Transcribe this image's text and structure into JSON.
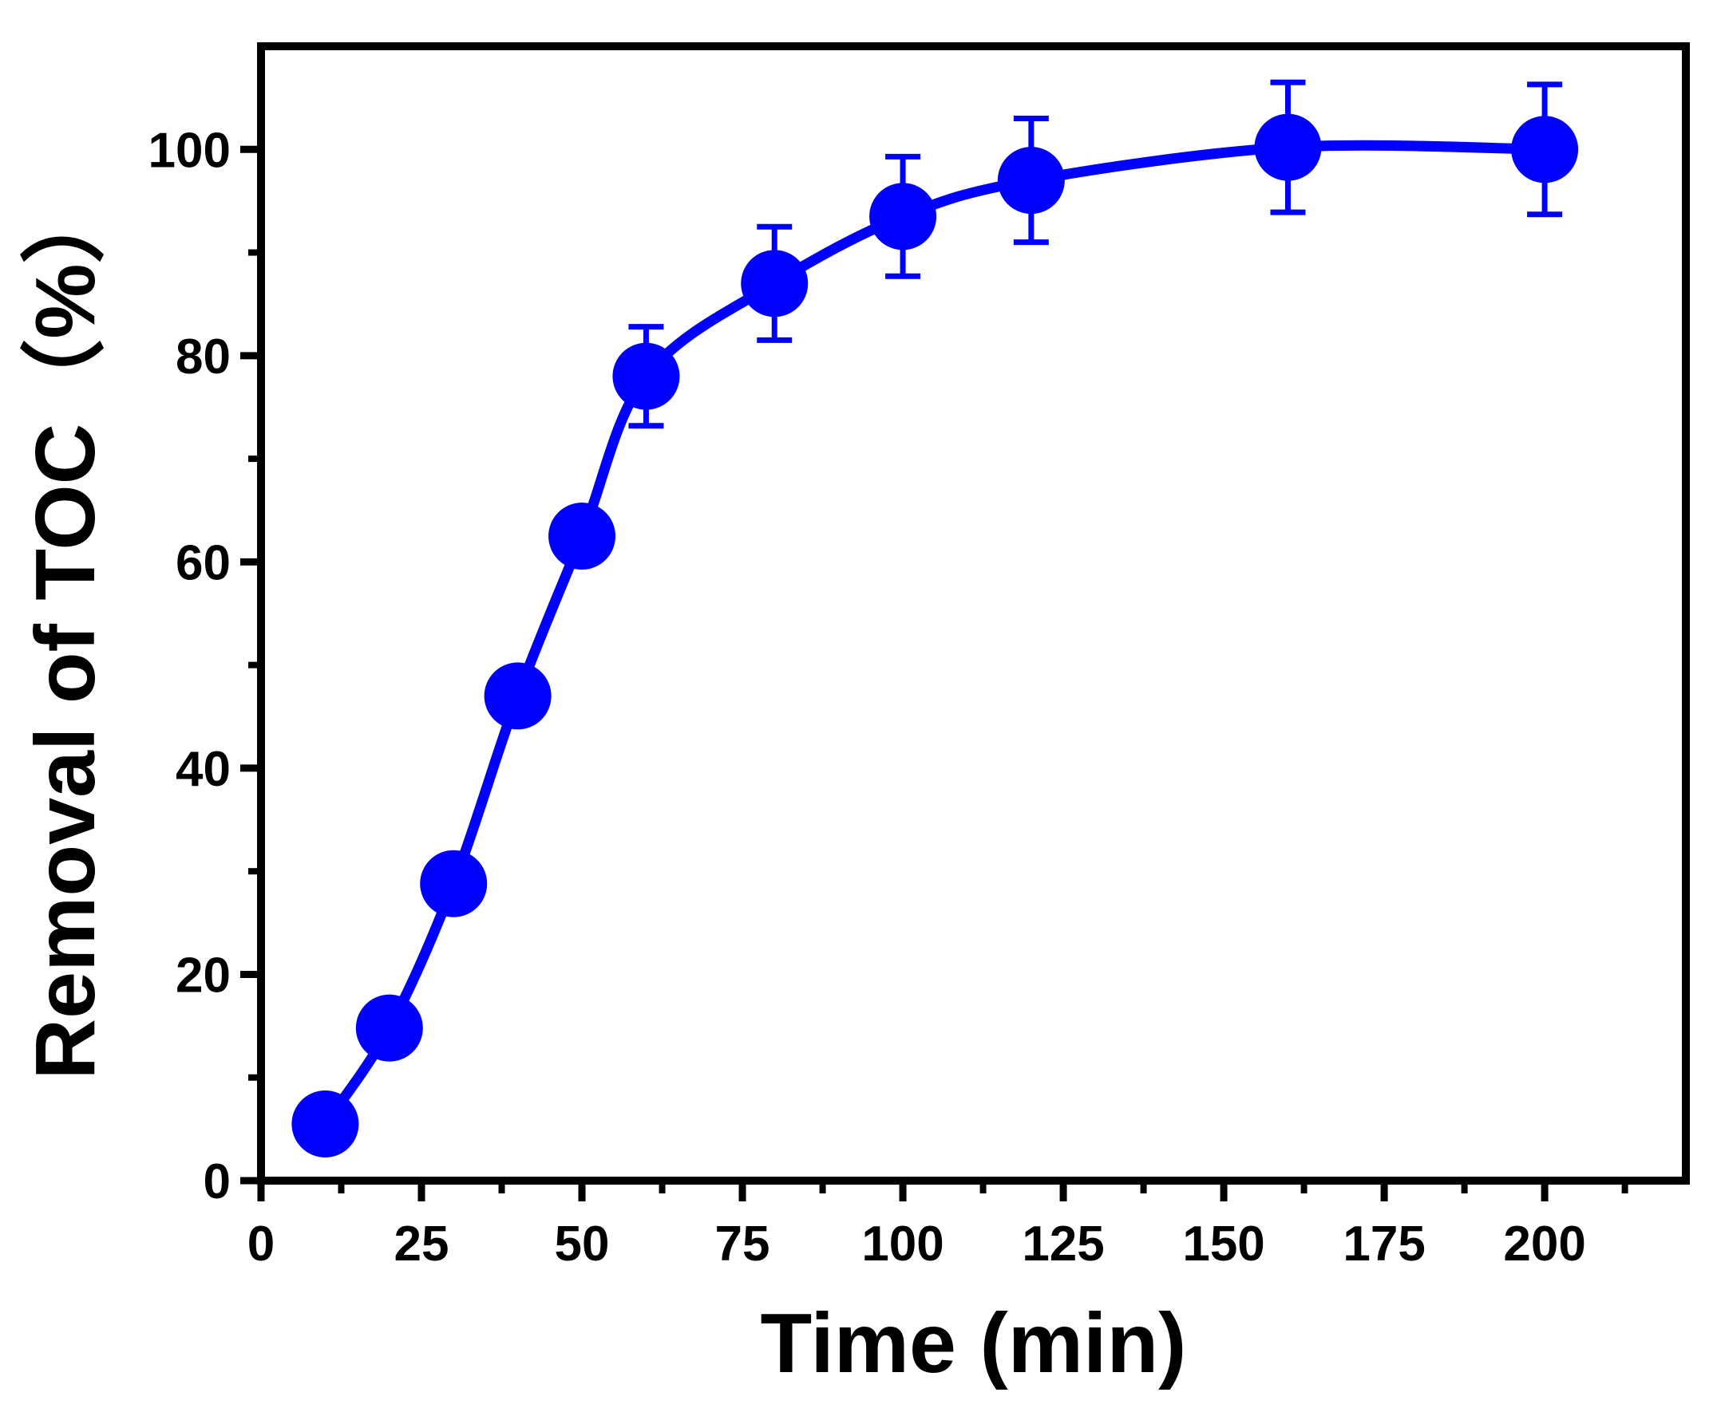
{
  "chart_data": {
    "type": "line",
    "title": "",
    "xlabel": "Time (min)",
    "ylabel": "Removal of TOC（%）",
    "xlim": [
      0,
      222
    ],
    "ylim": [
      0,
      110
    ],
    "xticks": [
      0,
      25,
      50,
      75,
      100,
      125,
      150,
      175,
      200
    ],
    "yticks": [
      0,
      20,
      40,
      60,
      80,
      100
    ],
    "grid": false,
    "legend": "none",
    "series": [
      {
        "color": "#0000ff",
        "marker": "circle",
        "x": [
          10,
          20,
          30,
          40,
          50,
          60,
          80,
          100,
          120,
          160,
          200
        ],
        "y": [
          5.5,
          14.8,
          28.8,
          47.0,
          62.5,
          78.0,
          87.0,
          93.5,
          97.0,
          100.2,
          100.0
        ],
        "error": [
          null,
          null,
          null,
          null,
          null,
          4.8,
          5.5,
          5.8,
          6.0,
          6.3,
          6.3
        ]
      }
    ]
  }
}
